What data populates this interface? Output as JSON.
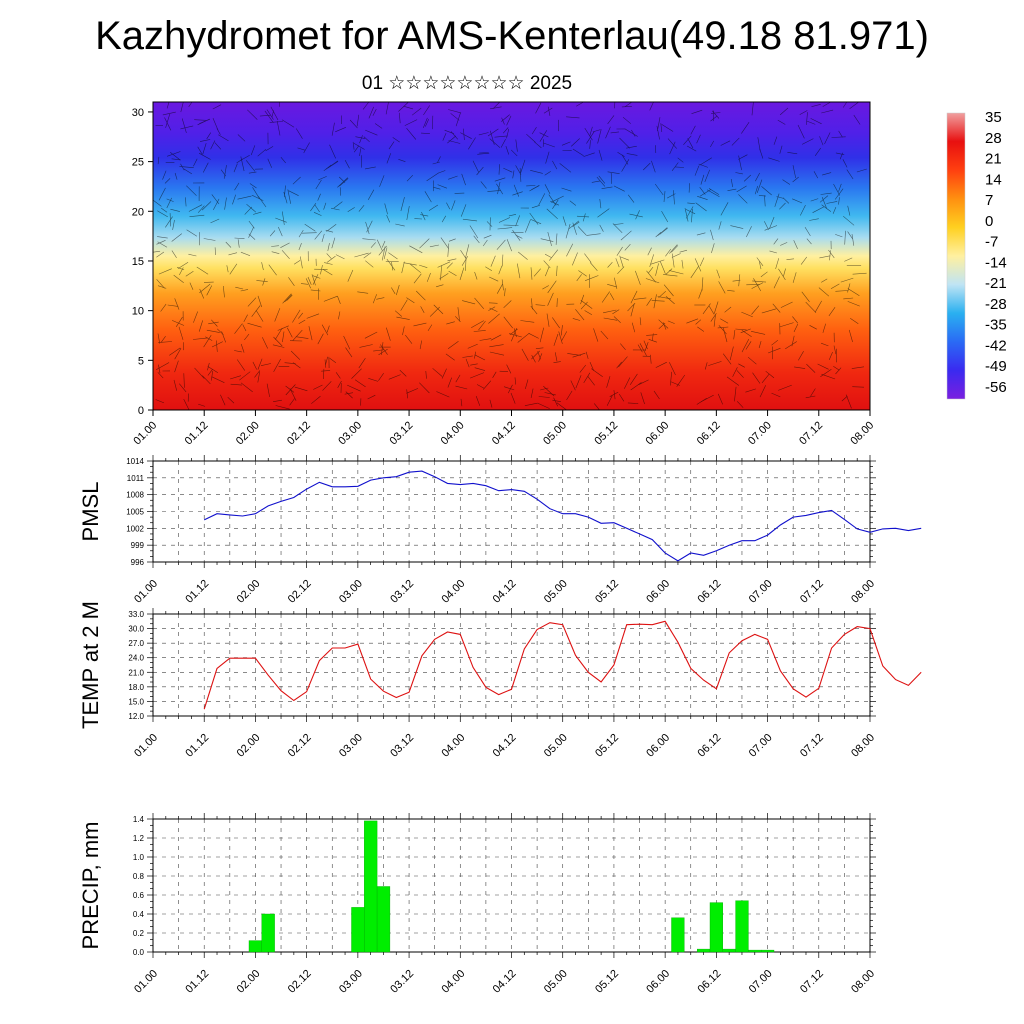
{
  "header": {
    "title": "Kazhydromet for AMS-Kenterlau(49.18 81.971)",
    "subtitle": "01 ☆☆☆☆☆☆☆☆ 2025"
  },
  "colors": {
    "pmsl_line": "#1010cc",
    "temp_line": "#dd1111",
    "precip_bar": "#00ee00",
    "colorbar_stops": [
      "#7a1fe0",
      "#3a2af0",
      "#2a6af5",
      "#2ab0f0",
      "#bfe4f4",
      "#fff0a0",
      "#ffd020",
      "#ff9010",
      "#ff4010",
      "#e81010",
      "#f0a0a0"
    ]
  },
  "chart_data": [
    {
      "type": "heatmap",
      "name": "cross-section",
      "title": "",
      "x_ticks": [
        "01.00",
        "01.12",
        "02.00",
        "02.12",
        "03.00",
        "03.12",
        "04.00",
        "04.12",
        "05.00",
        "05.12",
        "06.00",
        "06.12",
        "07.00",
        "07.12",
        "08.00"
      ],
      "y_ticks": [
        0,
        5,
        10,
        15,
        20,
        25,
        30
      ],
      "ylim": [
        0,
        31
      ],
      "colorbar": {
        "labels": [
          "35",
          "28",
          "21",
          "14",
          "7",
          "0",
          "-7",
          "-14",
          "-21",
          "-28",
          "-35",
          "-42",
          "-49",
          "-56"
        ]
      }
    },
    {
      "type": "line",
      "ylabel": "PMSL",
      "x_ticks": [
        "01.00",
        "01.12",
        "02.00",
        "02.12",
        "03.00",
        "03.12",
        "04.00",
        "04.12",
        "05.00",
        "05.12",
        "06.00",
        "06.12",
        "07.00",
        "07.12",
        "08.00"
      ],
      "y_ticks": [
        "996",
        "999",
        "1002",
        "1005",
        "1008",
        "1011",
        "1014"
      ],
      "ylim": [
        996,
        1014
      ],
      "series": [
        {
          "x": [
            0,
            3,
            6,
            9,
            12,
            15,
            18,
            21,
            24,
            27,
            30,
            33,
            36,
            39,
            42,
            45,
            48,
            51,
            54,
            57,
            60,
            63,
            66,
            69,
            72,
            75,
            78,
            81,
            84,
            87,
            90,
            93,
            96,
            99,
            102,
            105,
            108,
            111,
            114,
            117,
            120,
            123,
            126,
            129,
            132,
            135,
            138,
            141,
            144,
            147,
            150,
            153,
            156,
            159,
            162,
            165,
            168
          ],
          "values": [
            1003.5,
            1004.6,
            1004.4,
            1004.2,
            1004.6,
            1006.0,
            1006.8,
            1007.5,
            1009.0,
            1010.2,
            1009.4,
            1009.4,
            1009.5,
            1010.6,
            1011.0,
            1011.2,
            1012.0,
            1012.2,
            1011.2,
            1010.0,
            1009.8,
            1010.0,
            1009.6,
            1008.7,
            1008.9,
            1008.6,
            1007.2,
            1005.5,
            1004.6,
            1004.6,
            1004.0,
            1002.9,
            1003.0,
            1002.0,
            1001.0,
            1000.0,
            997.6,
            996.2,
            997.6,
            997.2,
            998.0,
            999.0,
            999.8,
            999.8,
            1000.8,
            1002.6,
            1004.0,
            1004.3,
            1004.8,
            1005.2,
            1003.6,
            1001.9,
            1001.3,
            1001.9,
            1002.0,
            1001.6,
            1002.0
          ]
        }
      ]
    },
    {
      "type": "line",
      "ylabel": "TEMP at 2 M",
      "x_ticks": [
        "01.00",
        "01.12",
        "02.00",
        "02.12",
        "03.00",
        "03.12",
        "04.00",
        "04.12",
        "05.00",
        "05.12",
        "06.00",
        "06.12",
        "07.00",
        "07.12",
        "08.00"
      ],
      "y_ticks": [
        "12.0",
        "15.0",
        "18.0",
        "21.0",
        "24.0",
        "27.0",
        "30.0",
        "33.0"
      ],
      "ylim": [
        12,
        33
      ],
      "series": [
        {
          "x": [
            0,
            3,
            6,
            9,
            12,
            15,
            18,
            21,
            24,
            27,
            30,
            33,
            36,
            39,
            42,
            45,
            48,
            51,
            54,
            57,
            60,
            63,
            66,
            69,
            72,
            75,
            78,
            81,
            84,
            87,
            90,
            93,
            96,
            99,
            102,
            105,
            108,
            111,
            114,
            117,
            120,
            123,
            126,
            129,
            132,
            135,
            138,
            141,
            144,
            147,
            150,
            153,
            156,
            159,
            162,
            165,
            168
          ],
          "values": [
            13.4,
            21.8,
            23.9,
            23.9,
            23.9,
            20.4,
            17.2,
            15.2,
            17.0,
            23.4,
            26.0,
            26.0,
            26.8,
            19.6,
            17.1,
            15.8,
            16.9,
            24.4,
            27.8,
            29.3,
            28.8,
            22.0,
            17.9,
            16.4,
            17.5,
            25.8,
            29.8,
            31.2,
            30.8,
            24.5,
            21.0,
            19.0,
            22.5,
            30.8,
            30.9,
            30.8,
            31.5,
            27.2,
            21.8,
            19.4,
            17.6,
            25.0,
            27.5,
            28.8,
            27.8,
            21.3,
            17.6,
            15.9,
            17.7,
            26.0,
            28.8,
            30.4,
            30.0,
            22.3,
            19.5,
            18.3,
            21.0
          ]
        }
      ]
    },
    {
      "type": "bar",
      "ylabel": "PRECIP, mm",
      "x_ticks": [
        "01.00",
        "01.12",
        "02.00",
        "02.12",
        "03.00",
        "03.12",
        "04.00",
        "04.12",
        "05.00",
        "05.12",
        "06.00",
        "06.12",
        "07.00",
        "07.12",
        "08.00"
      ],
      "y_ticks": [
        "0.0",
        "0.2",
        "0.4",
        "0.6",
        "0.8",
        "1.0",
        "1.2",
        "1.4"
      ],
      "ylim": [
        0,
        1.4
      ],
      "bar_width_hours": 3,
      "series": [
        {
          "x": [
            6,
            9,
            30,
            33,
            36,
            105,
            111,
            114,
            117,
            120,
            123,
            126
          ],
          "values": [
            0.12,
            0.4,
            0.47,
            1.38,
            0.69,
            0.36,
            0.03,
            0.52,
            0.03,
            0.54,
            0.02,
            0.02
          ]
        }
      ]
    }
  ]
}
